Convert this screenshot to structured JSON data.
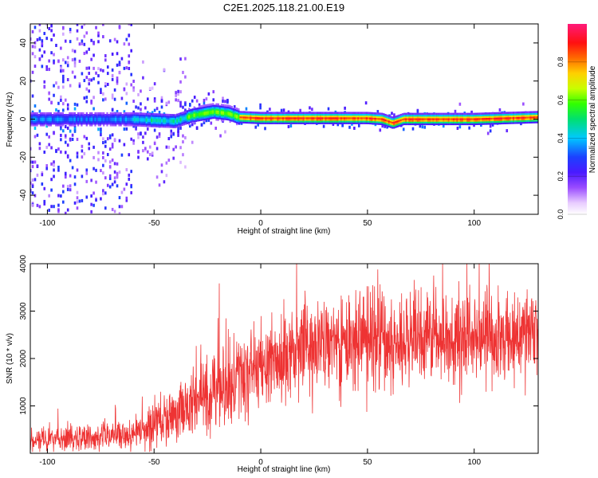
{
  "title": "C2E1.2025.118.21.00.E19",
  "colors": {
    "background": "#ffffff",
    "frame": "#000000",
    "snr_line": "#ee3333"
  },
  "chart_data": [
    {
      "type": "heatmap",
      "xlabel": "Height of straight line (km)",
      "ylabel": "Frequency (Hz)",
      "xlim": [
        -108,
        130
      ],
      "ylim": [
        -50,
        50
      ],
      "xticks": [
        -100,
        -50,
        0,
        50,
        100
      ],
      "yticks": [
        -40,
        -20,
        0,
        20,
        40
      ],
      "colorbar": {
        "label": "Normalized spectral amplitude",
        "range": [
          0,
          1
        ],
        "ticks": [
          "0.0",
          "0.2",
          "0.4",
          "0.6",
          "0.8"
        ],
        "colormap": "hsv-rainbow (white→lilac→violet→blue→cyan→green→yellow→orange→red→magenta)"
      },
      "ridge": [
        {
          "x": -108,
          "y": 0
        },
        {
          "x": -60,
          "y": 0
        },
        {
          "x": -40,
          "y": -1
        },
        {
          "x": -32,
          "y": 2
        },
        {
          "x": -22,
          "y": 4
        },
        {
          "x": -15,
          "y": 3
        },
        {
          "x": -10,
          "y": 1
        },
        {
          "x": 0,
          "y": 0.5
        },
        {
          "x": 50,
          "y": 0.5
        },
        {
          "x": 57,
          "y": 0
        },
        {
          "x": 62,
          "y": -2
        },
        {
          "x": 67,
          "y": 0
        },
        {
          "x": 100,
          "y": 0
        },
        {
          "x": 130,
          "y": 1
        }
      ]
    },
    {
      "type": "line",
      "xlabel": "Height of straight line (km)",
      "ylabel": "SNR (10 * v/v)",
      "xlim": [
        -108,
        130
      ],
      "ylim": [
        0,
        4000
      ],
      "xticks": [
        -100,
        -50,
        0,
        50,
        100
      ],
      "yticks": [
        1000,
        2000,
        3000,
        4000
      ],
      "trend": [
        {
          "x": -108,
          "y": 280
        },
        {
          "x": -80,
          "y": 330
        },
        {
          "x": -60,
          "y": 420
        },
        {
          "x": -50,
          "y": 600
        },
        {
          "x": -40,
          "y": 800
        },
        {
          "x": -30,
          "y": 1100
        },
        {
          "x": -20,
          "y": 1300
        },
        {
          "x": -10,
          "y": 1550
        },
        {
          "x": 0,
          "y": 1800
        },
        {
          "x": 10,
          "y": 1950
        },
        {
          "x": 20,
          "y": 2200
        },
        {
          "x": 40,
          "y": 2350
        },
        {
          "x": 60,
          "y": 2450
        },
        {
          "x": 80,
          "y": 2450
        },
        {
          "x": 100,
          "y": 2400
        },
        {
          "x": 130,
          "y": 2500
        }
      ],
      "noise_amplitude": [
        {
          "x": -108,
          "y": 120
        },
        {
          "x": -60,
          "y": 160
        },
        {
          "x": -40,
          "y": 300
        },
        {
          "x": -20,
          "y": 420
        },
        {
          "x": 0,
          "y": 450
        },
        {
          "x": 40,
          "y": 520
        },
        {
          "x": 130,
          "y": 450
        }
      ]
    }
  ]
}
